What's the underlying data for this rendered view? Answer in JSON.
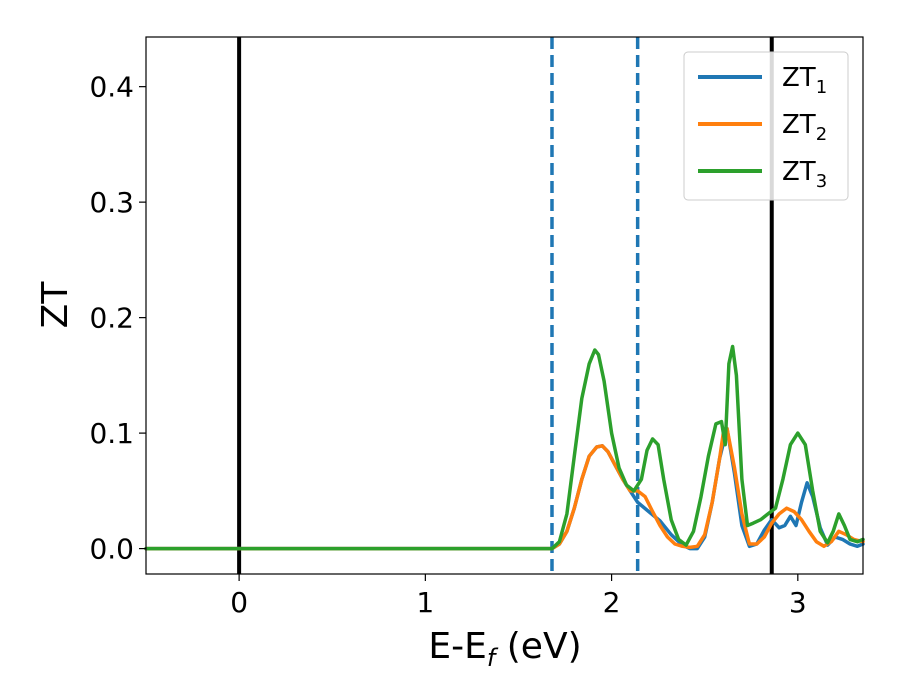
{
  "chart_data": {
    "type": "line",
    "xlabel": "E-E_f (eV)",
    "ylabel": "ZT",
    "xlim": [
      -0.5,
      3.35
    ],
    "ylim": [
      -0.022,
      0.443
    ],
    "xticks": [
      0,
      1,
      2,
      3
    ],
    "xtick_labels": [
      "0",
      "1",
      "2",
      "3"
    ],
    "yticks": [
      0.0,
      0.1,
      0.2,
      0.3,
      0.4
    ],
    "ytick_labels": [
      "0.0",
      "0.1",
      "0.2",
      "0.3",
      "0.4"
    ],
    "grid": false,
    "legend_position": "top-right",
    "vertical_lines": [
      {
        "x": 0.0,
        "style": "solid",
        "color": "#000000"
      },
      {
        "x": 2.86,
        "style": "solid",
        "color": "#000000"
      },
      {
        "x": 1.68,
        "style": "dashed",
        "color": "#1f77b4"
      },
      {
        "x": 2.14,
        "style": "dashed",
        "color": "#1f77b4"
      }
    ],
    "series": [
      {
        "name": "ZT_1",
        "legend_main": "ZT",
        "legend_sub": "1",
        "color": "#1f77b4",
        "x": [
          -0.5,
          1.6,
          1.68,
          1.72,
          1.76,
          1.8,
          1.84,
          1.88,
          1.92,
          1.95,
          1.98,
          2.02,
          2.06,
          2.1,
          2.14,
          2.2,
          2.26,
          2.32,
          2.38,
          2.42,
          2.46,
          2.5,
          2.54,
          2.58,
          2.62,
          2.66,
          2.7,
          2.74,
          2.78,
          2.82,
          2.86,
          2.9,
          2.93,
          2.96,
          2.99,
          3.02,
          3.05,
          3.08,
          3.12,
          3.16,
          3.2,
          3.24,
          3.28,
          3.32,
          3.35
        ],
        "y": [
          0.0,
          0.0,
          0.0,
          0.004,
          0.015,
          0.035,
          0.06,
          0.08,
          0.088,
          0.089,
          0.084,
          0.072,
          0.06,
          0.05,
          0.04,
          0.032,
          0.024,
          0.012,
          0.003,
          0.0,
          0.0,
          0.01,
          0.04,
          0.078,
          0.104,
          0.065,
          0.02,
          0.002,
          0.004,
          0.016,
          0.025,
          0.018,
          0.02,
          0.028,
          0.02,
          0.04,
          0.057,
          0.045,
          0.018,
          0.003,
          0.01,
          0.008,
          0.004,
          0.002,
          0.004
        ]
      },
      {
        "name": "ZT_2",
        "legend_main": "ZT",
        "legend_sub": "2",
        "color": "#ff7f0e",
        "x": [
          -0.5,
          1.6,
          1.68,
          1.72,
          1.76,
          1.8,
          1.84,
          1.88,
          1.92,
          1.95,
          1.98,
          2.02,
          2.06,
          2.1,
          2.14,
          2.18,
          2.22,
          2.26,
          2.3,
          2.34,
          2.38,
          2.42,
          2.46,
          2.5,
          2.54,
          2.58,
          2.6,
          2.62,
          2.66,
          2.7,
          2.74,
          2.78,
          2.82,
          2.86,
          2.9,
          2.94,
          2.98,
          3.02,
          3.06,
          3.1,
          3.14,
          3.18,
          3.22,
          3.26,
          3.3,
          3.35
        ],
        "y": [
          0.0,
          0.0,
          0.0,
          0.004,
          0.015,
          0.035,
          0.06,
          0.08,
          0.088,
          0.089,
          0.084,
          0.072,
          0.06,
          0.05,
          0.05,
          0.045,
          0.032,
          0.02,
          0.01,
          0.004,
          0.002,
          0.001,
          0.002,
          0.012,
          0.04,
          0.078,
          0.1,
          0.104,
          0.07,
          0.03,
          0.004,
          0.004,
          0.01,
          0.022,
          0.03,
          0.035,
          0.032,
          0.025,
          0.015,
          0.006,
          0.002,
          0.006,
          0.015,
          0.012,
          0.008,
          0.006
        ]
      },
      {
        "name": "ZT_3",
        "legend_main": "ZT",
        "legend_sub": "3",
        "color": "#2ca02c",
        "x": [
          -0.5,
          1.6,
          1.68,
          1.72,
          1.76,
          1.8,
          1.84,
          1.88,
          1.91,
          1.93,
          1.96,
          2.0,
          2.04,
          2.08,
          2.12,
          2.16,
          2.19,
          2.22,
          2.25,
          2.28,
          2.32,
          2.36,
          2.4,
          2.44,
          2.48,
          2.52,
          2.56,
          2.59,
          2.61,
          2.63,
          2.65,
          2.67,
          2.7,
          2.73,
          2.76,
          2.8,
          2.84,
          2.88,
          2.92,
          2.96,
          3.0,
          3.04,
          3.08,
          3.12,
          3.16,
          3.19,
          3.22,
          3.25,
          3.28,
          3.32,
          3.35
        ],
        "y": [
          0.0,
          0.0,
          0.0,
          0.006,
          0.03,
          0.08,
          0.13,
          0.16,
          0.172,
          0.168,
          0.145,
          0.1,
          0.07,
          0.055,
          0.05,
          0.06,
          0.085,
          0.095,
          0.09,
          0.06,
          0.025,
          0.008,
          0.003,
          0.015,
          0.045,
          0.08,
          0.108,
          0.11,
          0.09,
          0.16,
          0.175,
          0.15,
          0.06,
          0.02,
          0.022,
          0.025,
          0.03,
          0.035,
          0.06,
          0.09,
          0.1,
          0.09,
          0.05,
          0.015,
          0.005,
          0.015,
          0.03,
          0.02,
          0.008,
          0.006,
          0.008
        ]
      }
    ]
  }
}
